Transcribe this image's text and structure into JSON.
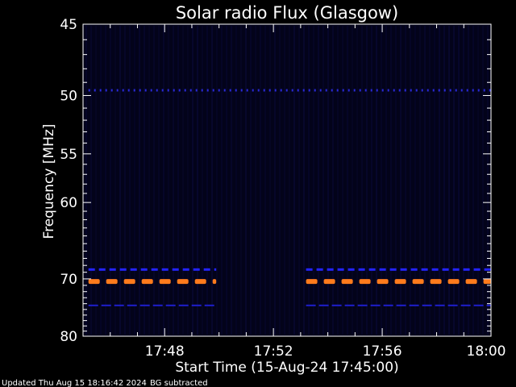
{
  "chart_data": {
    "type": "heatmap",
    "title": "Solar radio Flux (Glasgow)",
    "xlabel": "Start Time (15-Aug-24 17:45:00)",
    "ylabel": "Frequency [MHz]",
    "x_range_minutes_after_17_45": [
      0,
      15
    ],
    "y_range_mhz": [
      45,
      80
    ],
    "x_ticks": [
      {
        "label": "17:48",
        "minute": 3
      },
      {
        "label": "17:52",
        "minute": 7
      },
      {
        "label": "17:56",
        "minute": 11
      },
      {
        "label": "18:00",
        "minute": 15
      }
    ],
    "y_ticks": [
      {
        "label": "45",
        "mhz": 45
      },
      {
        "label": "50",
        "mhz": 50
      },
      {
        "label": "55",
        "mhz": 55
      },
      {
        "label": "60",
        "mhz": 60
      },
      {
        "label": "70",
        "mhz": 70
      },
      {
        "label": "80",
        "mhz": 80
      }
    ],
    "y_scale": "reciprocal",
    "background_color": "#03031a",
    "bands": [
      {
        "freq_mhz": 49.6,
        "color": "#2a2ad8",
        "style": "dotted",
        "segments": [
          [
            0.2,
            15
          ]
        ]
      },
      {
        "freq_mhz": 68.6,
        "color": "#2424ff",
        "style": "dashed",
        "segments": [
          [
            0.2,
            4.9
          ],
          [
            8.2,
            15
          ]
        ]
      },
      {
        "freq_mhz": 70.4,
        "color": "#ff7b1c",
        "style": "dashed-bold",
        "segments": [
          [
            0.2,
            4.9
          ],
          [
            8.2,
            15
          ]
        ]
      },
      {
        "freq_mhz": 74.3,
        "color": "#1e1ecc",
        "style": "dashed-thin",
        "segments": [
          [
            0.2,
            4.9
          ],
          [
            8.2,
            15
          ]
        ]
      }
    ]
  },
  "footer": {
    "updated": "Updated Thu Aug 15 18:16:42 2024",
    "note": "BG subtracted"
  },
  "colors": {
    "axes": "#ffffff",
    "text": "#ffffff",
    "page_background": "#000000"
  }
}
